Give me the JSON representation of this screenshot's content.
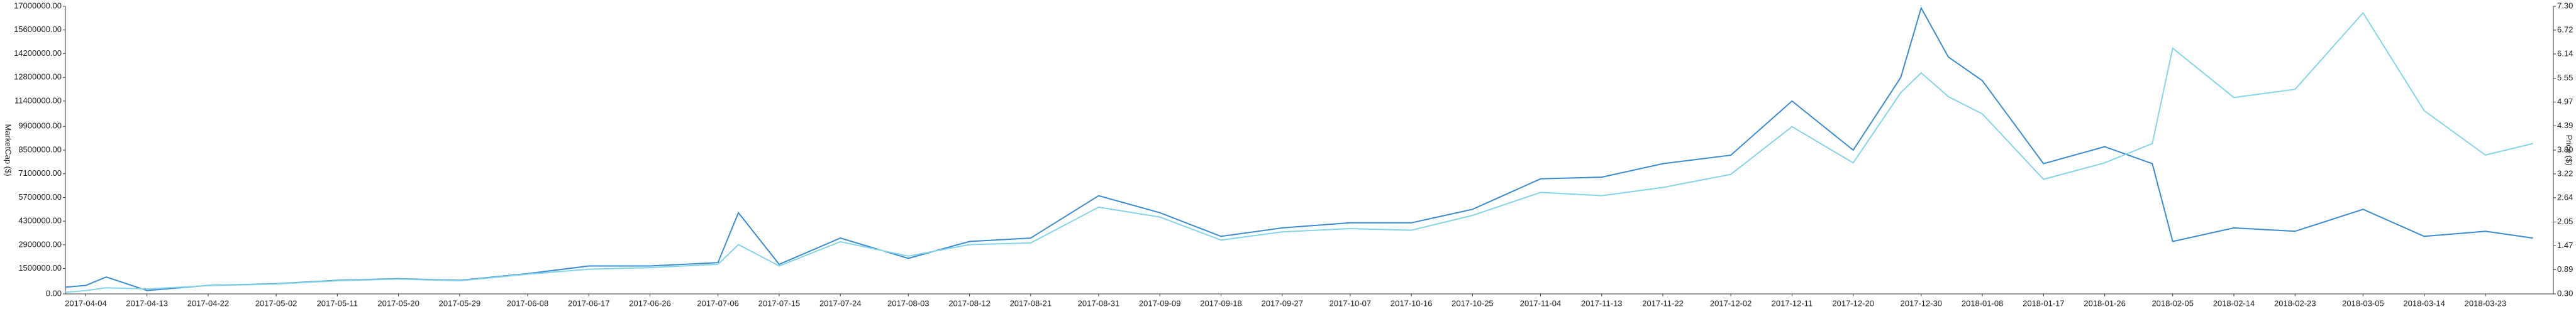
{
  "chart_data": {
    "type": "line",
    "x": [
      "2017-04-01",
      "2017-04-04",
      "2017-04-07",
      "2017-04-13",
      "2017-04-22",
      "2017-05-02",
      "2017-05-11",
      "2017-05-20",
      "2017-05-29",
      "2017-06-08",
      "2017-06-17",
      "2017-06-26",
      "2017-07-06",
      "2017-07-09",
      "2017-07-15",
      "2017-07-24",
      "2017-08-03",
      "2017-08-12",
      "2017-08-21",
      "2017-08-31",
      "2017-09-09",
      "2017-09-18",
      "2017-09-27",
      "2017-10-07",
      "2017-10-16",
      "2017-10-25",
      "2017-11-04",
      "2017-11-13",
      "2017-11-22",
      "2017-12-02",
      "2017-12-11",
      "2017-12-20",
      "2017-12-27",
      "2017-12-30",
      "2018-01-03",
      "2018-01-08",
      "2018-01-17",
      "2018-01-26",
      "2018-02-02",
      "2018-02-05",
      "2018-02-14",
      "2018-02-23",
      "2018-03-05",
      "2018-03-14",
      "2018-03-23",
      "2018-03-30"
    ],
    "series": [
      {
        "name": "MarketCap ($)",
        "color": "#3b8bd0",
        "axis": "y",
        "values": [
          400000,
          500000,
          1000000,
          200000,
          500000,
          600000,
          800000,
          900000,
          800000,
          1200000,
          1650000,
          1650000,
          1850000,
          4800000,
          1750000,
          3300000,
          2100000,
          3100000,
          3300000,
          5800000,
          4800000,
          3400000,
          3900000,
          4200000,
          4200000,
          5000000,
          6800000,
          6900000,
          7700000,
          8200000,
          11400000,
          8500000,
          12800000,
          16900000,
          14000000,
          12600000,
          7700000,
          8700000,
          7700000,
          3100000,
          3900000,
          3700000,
          5000000,
          3400000,
          3700000,
          3300000
        ]
      },
      {
        "name": "Price ($)",
        "color": "#86d4e8",
        "axis": "y2",
        "values": [
          0.34,
          0.38,
          0.45,
          0.42,
          0.5,
          0.54,
          0.62,
          0.66,
          0.62,
          0.78,
          0.9,
          0.94,
          1.02,
          1.5,
          0.98,
          1.57,
          1.22,
          1.5,
          1.54,
          2.41,
          2.17,
          1.61,
          1.81,
          1.89,
          1.85,
          2.21,
          2.77,
          2.69,
          2.89,
          3.21,
          4.37,
          3.49,
          5.2,
          5.68,
          5.1,
          4.68,
          3.09,
          3.49,
          3.96,
          6.28,
          5.08,
          5.28,
          7.14,
          4.76,
          3.68,
          3.96
        ]
      }
    ],
    "xlim": [
      "2017-04-01",
      "2018-04-02"
    ],
    "xticks": [
      "2017-04-04",
      "2017-04-13",
      "2017-04-22",
      "2017-05-02",
      "2017-05-11",
      "2017-05-20",
      "2017-05-29",
      "2017-06-08",
      "2017-06-17",
      "2017-06-26",
      "2017-07-06",
      "2017-07-15",
      "2017-07-24",
      "2017-08-03",
      "2017-08-12",
      "2017-08-21",
      "2017-08-31",
      "2017-09-09",
      "2017-09-18",
      "2017-09-27",
      "2017-10-07",
      "2017-10-16",
      "2017-10-25",
      "2017-11-04",
      "2017-11-13",
      "2017-11-22",
      "2017-12-02",
      "2017-12-11",
      "2017-12-20",
      "2017-12-30",
      "2018-01-08",
      "2018-01-17",
      "2018-01-26",
      "2018-02-05",
      "2018-02-14",
      "2018-02-23",
      "2018-03-05",
      "2018-03-14",
      "2018-03-23"
    ],
    "ylabel": "MarketCap ($)",
    "ylim": [
      0,
      17000000
    ],
    "yticks": [
      {
        "value": 0,
        "label": "0.00"
      },
      {
        "value": 1500000,
        "label": "1500000.00"
      },
      {
        "value": 2900000,
        "label": "2900000.00"
      },
      {
        "value": 4300000,
        "label": "4300000.00"
      },
      {
        "value": 5700000,
        "label": "5700000.00"
      },
      {
        "value": 7100000,
        "label": "7100000.00"
      },
      {
        "value": 8500000,
        "label": "8500000.00"
      },
      {
        "value": 9900000,
        "label": "9900000.00"
      },
      {
        "value": 11400000,
        "label": "11400000.00"
      },
      {
        "value": 12800000,
        "label": "12800000.00"
      },
      {
        "value": 14200000,
        "label": "14200000.00"
      },
      {
        "value": 15600000,
        "label": "15600000.00"
      },
      {
        "value": 17000000,
        "label": "17000000.00"
      }
    ],
    "y2label": "Price ($)",
    "y2lim": [
      0.3,
      7.3
    ],
    "y2ticks": [
      {
        "value": 0.3,
        "label": "0.30"
      },
      0.89,
      1.47,
      2.05,
      2.64,
      3.22,
      {
        "value": 3.8,
        "label": "3.80"
      },
      4.39,
      4.97,
      5.55,
      6.14,
      6.72,
      {
        "value": 7.3,
        "label": "7.30"
      }
    ]
  }
}
